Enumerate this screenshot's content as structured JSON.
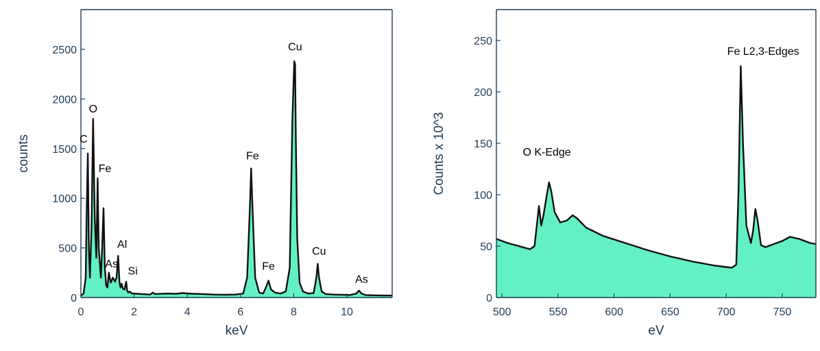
{
  "colors": {
    "fill": "#63f0c4",
    "line": "#111111",
    "axis": "#1f3b55"
  },
  "chart_data": [
    {
      "type": "area",
      "xlabel": "keV",
      "ylabel": "counts",
      "xlim": [
        0,
        11.7
      ],
      "ylim": [
        0,
        2900
      ],
      "xticks": [
        0,
        2,
        4,
        6,
        8,
        10
      ],
      "yticks": [
        0,
        500,
        1000,
        1500,
        2000,
        2500
      ],
      "x_tick_labels": [
        "0",
        "2",
        "4",
        "6",
        "8",
        "10"
      ],
      "y_tick_labels": [
        "0",
        "500",
        "1000",
        "1500",
        "2000",
        "2500"
      ],
      "series": [
        {
          "x": [
            0.0,
            0.1,
            0.18,
            0.22,
            0.26,
            0.3,
            0.34,
            0.4,
            0.46,
            0.52,
            0.58,
            0.63,
            0.67,
            0.71,
            0.75,
            0.8,
            0.85,
            0.9,
            0.95,
            1.0,
            1.05,
            1.12,
            1.2,
            1.28,
            1.34,
            1.4,
            1.45,
            1.49,
            1.53,
            1.58,
            1.64,
            1.7,
            1.74,
            1.78,
            1.84,
            1.92,
            2.0,
            2.3,
            2.6,
            2.7,
            2.8,
            3.2,
            3.6,
            3.8,
            4.2,
            4.6,
            5.0,
            5.4,
            5.8,
            6.1,
            6.25,
            6.35,
            6.4,
            6.45,
            6.55,
            6.7,
            6.85,
            6.95,
            7.05,
            7.15,
            7.3,
            7.5,
            7.7,
            7.85,
            7.95,
            8.02,
            8.05,
            8.08,
            8.13,
            8.22,
            8.35,
            8.55,
            8.75,
            8.85,
            8.9,
            8.95,
            9.05,
            9.2,
            9.5,
            9.8,
            10.1,
            10.35,
            10.45,
            10.55,
            10.7,
            11.0,
            11.4,
            11.7
          ],
          "y": [
            20,
            40,
            200,
            900,
            1450,
            500,
            200,
            700,
            1800,
            800,
            400,
            1200,
            500,
            350,
            200,
            500,
            900,
            300,
            120,
            100,
            250,
            150,
            200,
            160,
            200,
            420,
            150,
            100,
            140,
            90,
            80,
            160,
            70,
            50,
            60,
            40,
            40,
            35,
            30,
            50,
            35,
            40,
            38,
            45,
            38,
            35,
            30,
            28,
            30,
            40,
            200,
            900,
            1300,
            900,
            200,
            50,
            40,
            100,
            170,
            80,
            50,
            40,
            60,
            300,
            1800,
            2380,
            2350,
            1600,
            600,
            150,
            60,
            40,
            45,
            200,
            340,
            200,
            60,
            35,
            30,
            28,
            25,
            40,
            70,
            40,
            25,
            22,
            20,
            20
          ]
        }
      ],
      "annotations": [
        {
          "text": "C",
          "x": 0.1,
          "y": 1560
        },
        {
          "text": "O",
          "x": 0.46,
          "y": 1865
        },
        {
          "text": "Fe",
          "x": 0.9,
          "y": 1265
        },
        {
          "text": "As",
          "x": 1.15,
          "y": 305
        },
        {
          "text": "Al",
          "x": 1.55,
          "y": 500
        },
        {
          "text": "Si",
          "x": 1.95,
          "y": 230
        },
        {
          "text": "Fe",
          "x": 6.45,
          "y": 1390
        },
        {
          "text": "Fe",
          "x": 7.05,
          "y": 280
        },
        {
          "text": "Cu",
          "x": 8.05,
          "y": 2490
        },
        {
          "text": "Cu",
          "x": 8.95,
          "y": 430
        },
        {
          "text": "As",
          "x": 10.55,
          "y": 150
        }
      ]
    },
    {
      "type": "area",
      "xlabel": "eV",
      "ylabel": "Counts x 10^3",
      "xlim": [
        495,
        780
      ],
      "ylim": [
        0,
        280
      ],
      "xticks": [
        500,
        550,
        600,
        650,
        700,
        750
      ],
      "yticks": [
        0,
        50,
        100,
        150,
        200,
        250
      ],
      "x_tick_labels": [
        "500",
        "550",
        "600",
        "650",
        "700",
        "750"
      ],
      "y_tick_labels": [
        "0",
        "50",
        "100",
        "150",
        "200",
        "250"
      ],
      "series": [
        {
          "x": [
            495,
            505,
            515,
            525,
            529,
            531,
            533,
            535,
            537,
            540,
            542,
            544,
            547,
            552,
            558,
            563,
            567,
            575,
            590,
            610,
            630,
            650,
            670,
            690,
            705,
            709,
            711,
            713,
            715,
            718,
            722,
            724,
            726,
            728,
            731,
            735,
            740,
            750,
            757,
            765,
            775,
            780
          ],
          "y": [
            57,
            53,
            50,
            47,
            50,
            70,
            89,
            70,
            80,
            100,
            112,
            103,
            83,
            73,
            75,
            80,
            77,
            68,
            60,
            53,
            46,
            40,
            35,
            31,
            29,
            32,
            105,
            225,
            150,
            70,
            53,
            65,
            86,
            75,
            51,
            49,
            51,
            55,
            59,
            57,
            53,
            52
          ]
        }
      ],
      "annotations": [
        {
          "text": "O K-Edge",
          "x": 540,
          "y": 138
        },
        {
          "text": "Fe L2,3-Edges",
          "x": 733,
          "y": 236
        }
      ]
    }
  ]
}
